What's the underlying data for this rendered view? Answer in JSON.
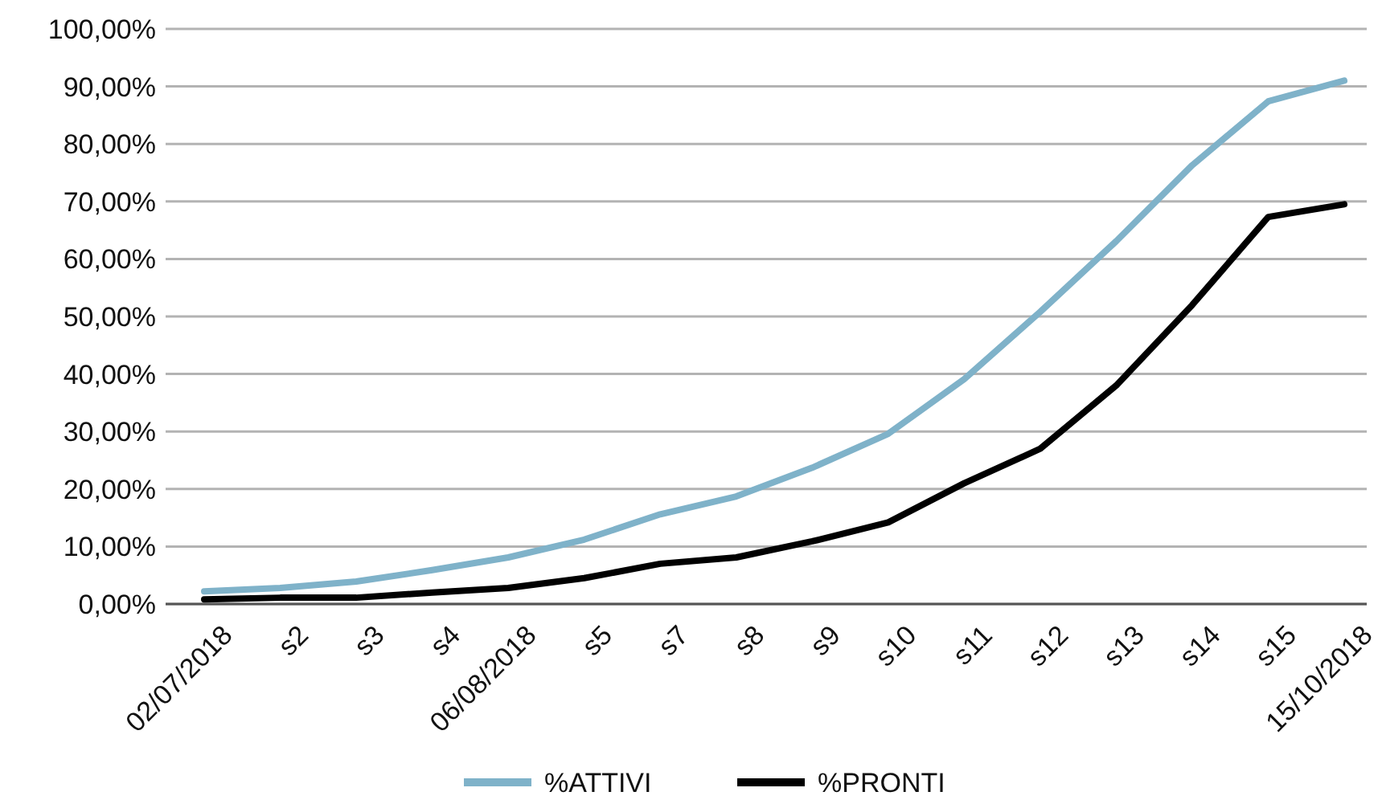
{
  "chart_data": {
    "type": "line",
    "categories": [
      "02/07/2018",
      "s2",
      "s3",
      "s4",
      "06/08/2018",
      "s5",
      "s7",
      "s8",
      "s9",
      "s10",
      "s11",
      "s12",
      "s13",
      "s14",
      "s15",
      "15/10/2018"
    ],
    "series": [
      {
        "name": "%ATTIVI",
        "color": "#7fb2c9",
        "values": [
          2.2,
          2.8,
          3.9,
          5.9,
          8.1,
          11.2,
          15.6,
          18.7,
          23.7,
          29.6,
          39.1,
          50.8,
          63.1,
          76.3,
          87.4,
          91
        ]
      },
      {
        "name": "%PRONTI",
        "color": "#000000",
        "values": [
          0.8,
          1.1,
          1.1,
          2,
          2.8,
          4.5,
          7,
          8.1,
          10.9,
          14.2,
          21,
          27,
          38,
          52,
          67.3,
          69.5
        ]
      }
    ],
    "ylim": [
      0,
      100
    ],
    "yticks": [
      {
        "value": 0,
        "label": "0,00%"
      },
      {
        "value": 10,
        "label": "10,00%"
      },
      {
        "value": 20,
        "label": "20,00%"
      },
      {
        "value": 30,
        "label": "30,00%"
      },
      {
        "value": 40,
        "label": "40,00%"
      },
      {
        "value": 50,
        "label": "50,00%"
      },
      {
        "value": 60,
        "label": "60,00%"
      },
      {
        "value": 70,
        "label": "70,00%"
      },
      {
        "value": 80,
        "label": "80,00%"
      },
      {
        "value": 90,
        "label": "90,00%"
      },
      {
        "value": 100,
        "label": "100,00%"
      }
    ],
    "grid": "y",
    "legend": "bottom",
    "marker": "none",
    "line_style": "solid"
  }
}
